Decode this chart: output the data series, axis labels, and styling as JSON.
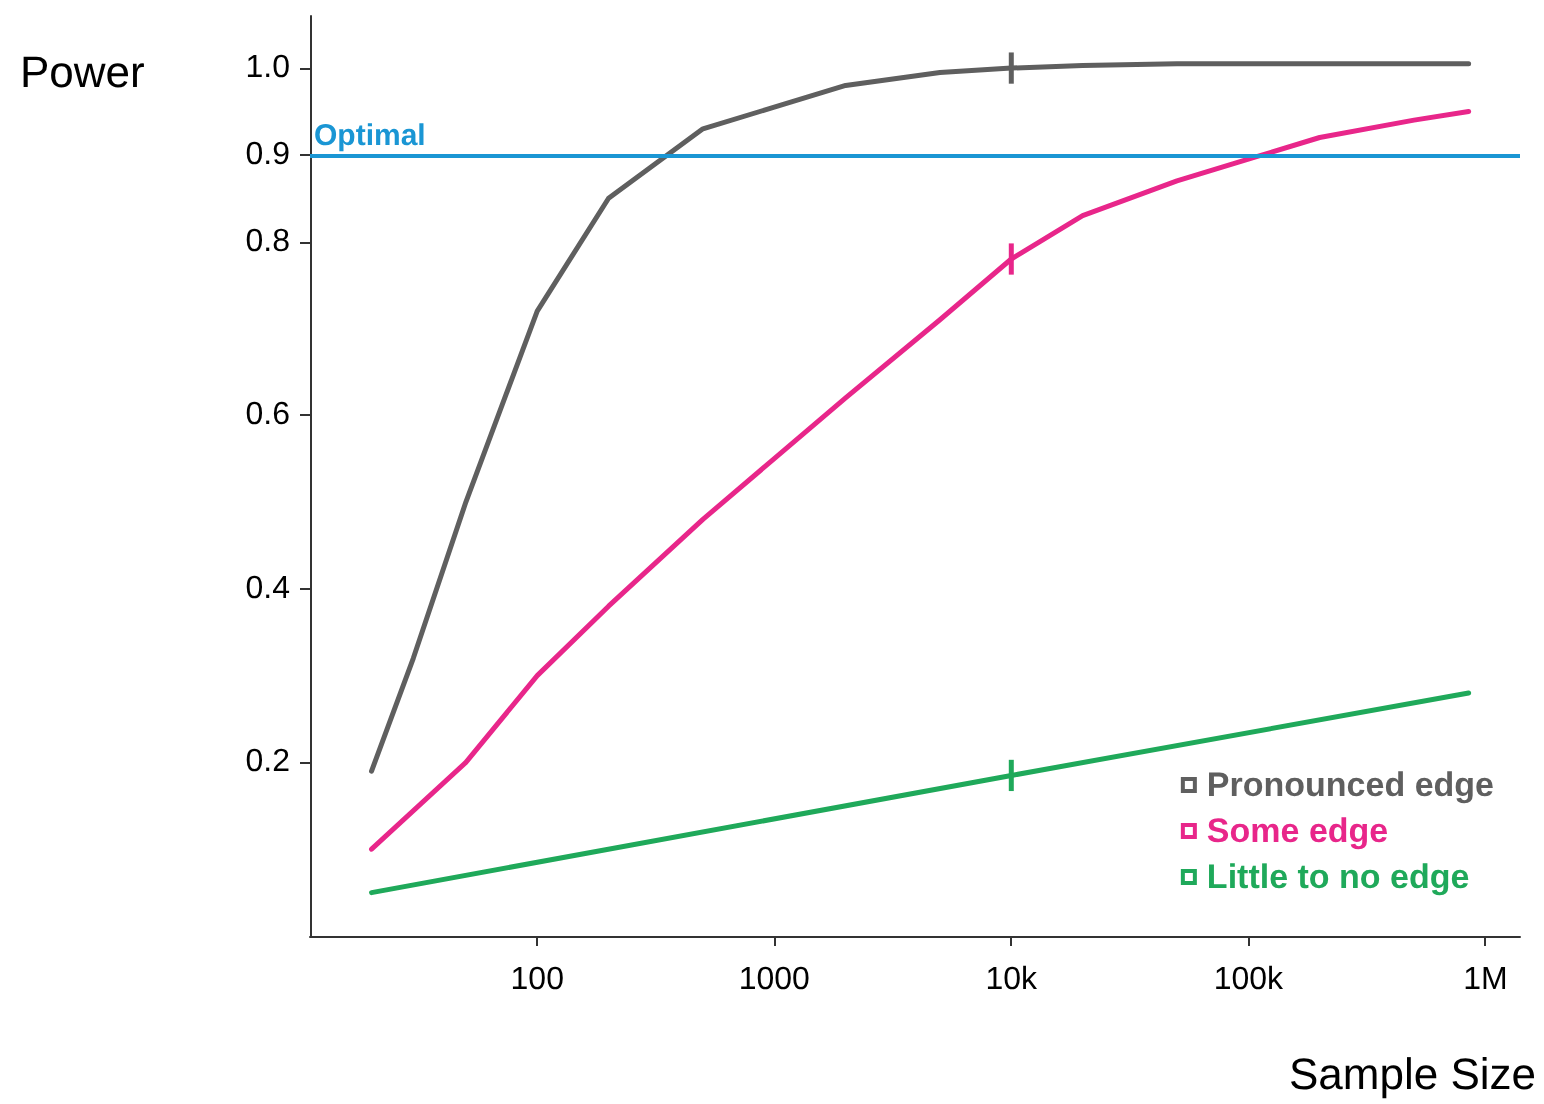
{
  "chart_data": {
    "type": "line",
    "xlabel": "Sample Size",
    "ylabel": "Power",
    "log": "x",
    "xlim": [
      11,
      1400000
    ],
    "xticks": [
      {
        "value": 100,
        "label": "100"
      },
      {
        "value": 1000,
        "label": "1000"
      },
      {
        "value": 10000,
        "label": "10k"
      },
      {
        "value": 100000,
        "label": "100k"
      },
      {
        "value": 1000000,
        "label": "1M"
      }
    ],
    "ylim": [
      0,
      1.06
    ],
    "yticks": [
      0.2,
      0.4,
      0.6,
      0.8,
      0.9,
      {
        "value": 1.0,
        "label": "1.0"
      }
    ],
    "grid": false,
    "legend": "bottom right",
    "line_style": "solid",
    "ref_lines": [
      {
        "axis": "y",
        "value": 0.9,
        "label": "Optimal",
        "color": "#1a96d4"
      }
    ],
    "series": [
      {
        "name": "Pronounced edge",
        "color": "#5f5f5f",
        "x": [
          20,
          30,
          50,
          100,
          200,
          500,
          1000,
          2000,
          5000,
          10000,
          20000,
          50000,
          100000,
          200000,
          500000,
          850000
        ],
        "values": [
          0.19,
          0.32,
          0.5,
          0.72,
          0.85,
          0.93,
          0.955,
          0.98,
          0.995,
          1.0,
          1.003,
          1.005,
          1.005,
          1.005,
          1.005,
          1.005
        ],
        "errors": [
          null,
          null,
          null,
          null,
          null,
          null,
          null,
          null,
          null,
          0.018,
          null,
          null,
          null,
          null,
          null,
          null
        ]
      },
      {
        "name": "Some edge",
        "color": "#e8268a",
        "x": [
          20,
          50,
          100,
          200,
          500,
          1000,
          2000,
          5000,
          10000,
          20000,
          50000,
          100000,
          200000,
          500000,
          850000
        ],
        "values": [
          0.1,
          0.2,
          0.3,
          0.38,
          0.48,
          0.55,
          0.62,
          0.71,
          0.78,
          0.83,
          0.87,
          0.895,
          0.92,
          0.94,
          0.95
        ],
        "errors": [
          null,
          null,
          null,
          null,
          null,
          null,
          null,
          null,
          0.018,
          null,
          null,
          null,
          null,
          null,
          null
        ]
      },
      {
        "name": "Little to no edge",
        "color": "#1fa95a",
        "x": [
          20,
          10000,
          850000
        ],
        "values": [
          0.05,
          0.185,
          0.28
        ],
        "errors": [
          null,
          0.018,
          null
        ]
      }
    ]
  }
}
